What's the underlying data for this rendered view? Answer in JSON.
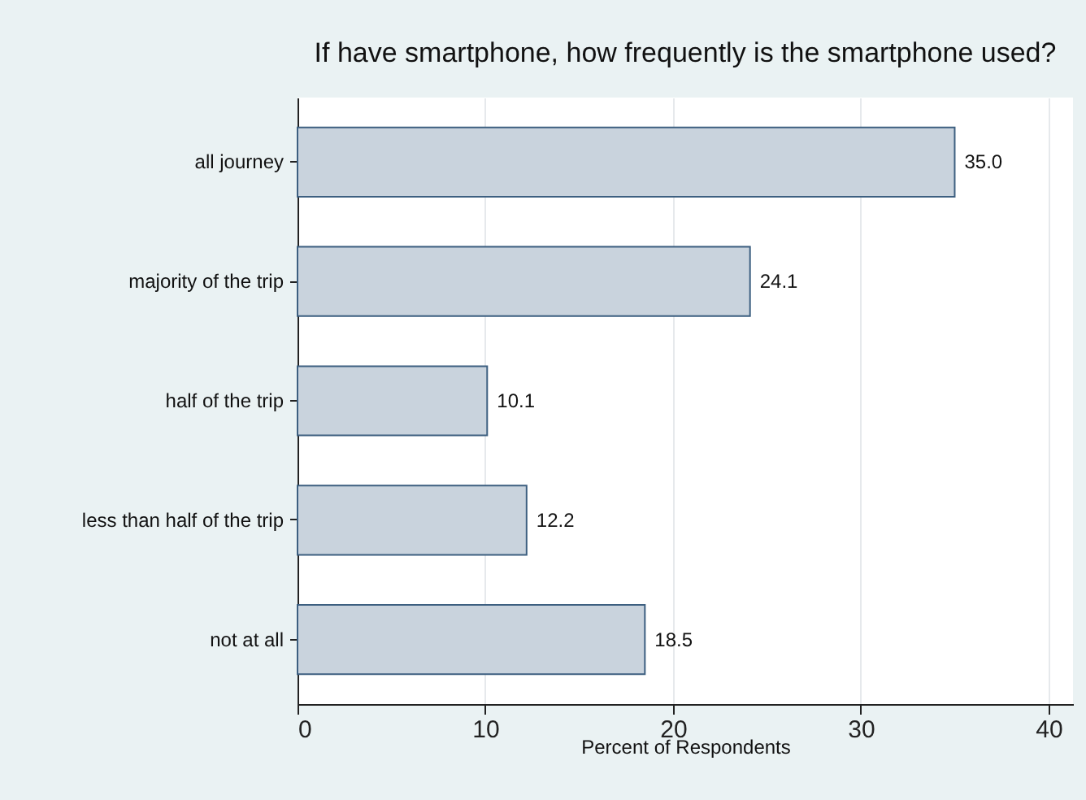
{
  "chart_data": {
    "type": "bar",
    "orientation": "horizontal",
    "title": "If have smartphone, how frequently is the smartphone used?",
    "xlabel": "Percent of Respondents",
    "categories": [
      "all journey",
      "majority of the trip",
      "half of the trip",
      "less than half of the trip",
      "not at all"
    ],
    "values": [
      35.0,
      24.1,
      10.1,
      12.2,
      18.5
    ],
    "value_labels": [
      "35.0",
      "24.1",
      "10.1",
      "12.2",
      "18.5"
    ],
    "color": "#c9d3dd",
    "xlim": [
      0,
      41.3
    ],
    "xticks": [
      0,
      10,
      20,
      30,
      40
    ],
    "grid": "x"
  }
}
